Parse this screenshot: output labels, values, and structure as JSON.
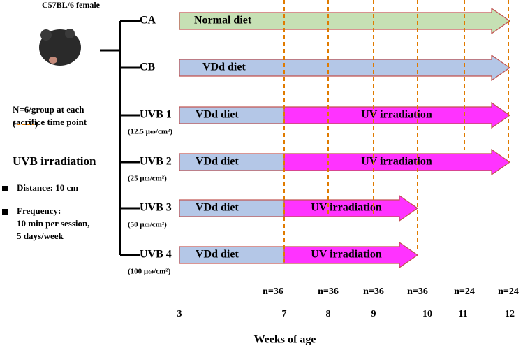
{
  "strain": "C57BL/6 female",
  "sampling_note": [
    "N=6/group at each",
    "sacrifice time point"
  ],
  "legend_marker": [
    "(",
    ")"
  ],
  "irradiation": {
    "title": "UVB irradiation",
    "items": [
      [
        "Distance: 10 cm"
      ],
      [
        "Frequency:",
        "10 min per session,",
        "5  days/week"
      ]
    ]
  },
  "groups": [
    {
      "label": "CA",
      "segments": [
        "Normal diet"
      ]
    },
    {
      "label": "CB",
      "segments": [
        "VDd diet"
      ]
    },
    {
      "label": "UVB 1",
      "dose": "(12.5 μω/cm²)",
      "segments": [
        "VDd diet",
        "UV irradiation"
      ]
    },
    {
      "label": "UVB 2",
      "dose": "(25 μω/cm²)",
      "segments": [
        "VDd diet",
        "UV irradiation"
      ]
    },
    {
      "label": "UVB 3",
      "dose": "(50 μω/cm²)",
      "segments": [
        "VDd diet",
        "UV irradiation"
      ]
    },
    {
      "label": "UVB 4",
      "dose": "(100 μω/cm²)",
      "segments": [
        "VDd diet",
        "UV irradiation"
      ]
    }
  ],
  "sample_sizes": [
    "n=36",
    "n=36",
    "n=36",
    "n=36",
    "n=24",
    "n=24"
  ],
  "weeks": [
    "3",
    "7",
    "8",
    "9",
    "10",
    "11",
    "12"
  ],
  "x_axis_label": "Weeks of age"
}
